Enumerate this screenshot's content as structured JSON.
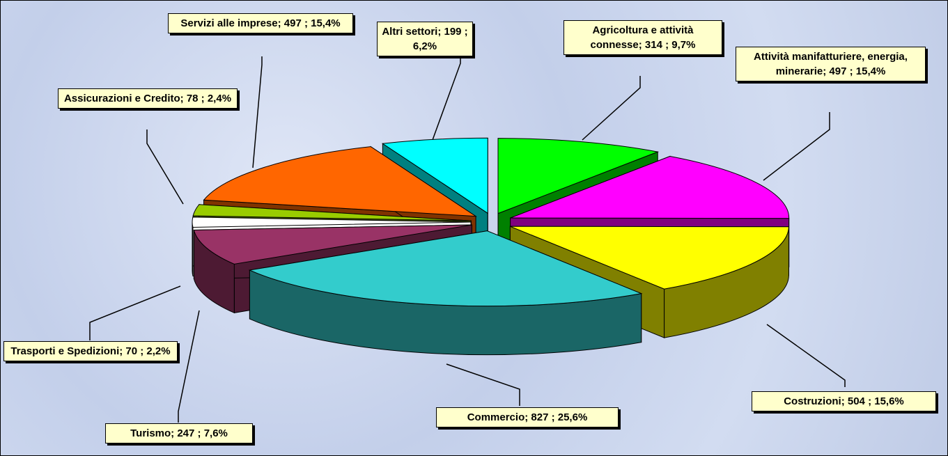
{
  "chart_data": {
    "type": "pie3d",
    "values": [
      314,
      497,
      504,
      827,
      247,
      70,
      78,
      497,
      199
    ],
    "value_labels": [
      "Agricoltura e attività connesse; 314 ; 9,7%",
      "Attività manifatturiere, energia, minerarie; 497 ; 15,4%",
      "Costruzioni; 504 ; 15,6%",
      "Commercio; 827 ; 25,6%",
      "Turismo; 247 ; 7,6%",
      "Trasporti e Spedizioni; 70 ; 2,2%",
      "Assicurazioni e Credito; 78 ; 2,4%",
      "Servizi alle imprese; 497 ; 15,4%",
      "Altri settori; 199 ; 6,2%"
    ],
    "colors": [
      "#00ff00",
      "#ff00ff",
      "#ffff00",
      "#33cccc",
      "#993366",
      "#ffffff",
      "#99cc00",
      "#ff6600",
      "#00ffff"
    ]
  }
}
